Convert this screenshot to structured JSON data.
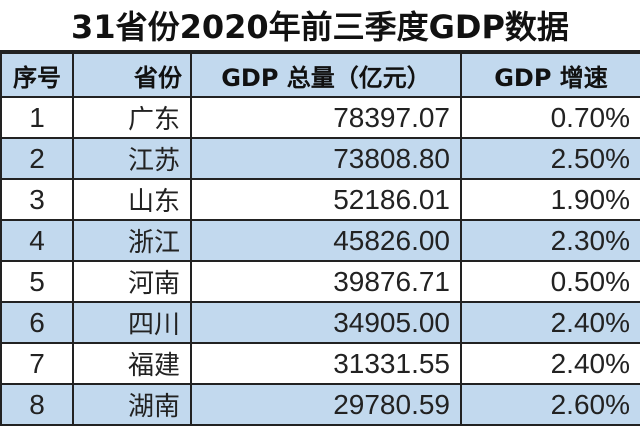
{
  "title": "31省份2020年前三季度GDP数据",
  "headers": {
    "rank": "序号",
    "province": "省份",
    "gdp": "GDP 总量（亿元）",
    "growth": "GDP 增速"
  },
  "rows": [
    {
      "rank": "1",
      "province": "广东",
      "gdp": "78397.07",
      "growth": "0.70%"
    },
    {
      "rank": "2",
      "province": "江苏",
      "gdp": "73808.80",
      "growth": "2.50%"
    },
    {
      "rank": "3",
      "province": "山东",
      "gdp": "52186.01",
      "growth": "1.90%"
    },
    {
      "rank": "4",
      "province": "浙江",
      "gdp": "45826.00",
      "growth": "2.30%"
    },
    {
      "rank": "5",
      "province": "河南",
      "gdp": "39876.71",
      "growth": "0.50%"
    },
    {
      "rank": "6",
      "province": "四川",
      "gdp": "34905.00",
      "growth": "2.40%"
    },
    {
      "rank": "7",
      "province": "福建",
      "gdp": "31331.55",
      "growth": "2.40%"
    },
    {
      "rank": "8",
      "province": "湖南",
      "gdp": "29780.59",
      "growth": "2.60%"
    }
  ],
  "colors": {
    "header_bg": "#c2d9ee",
    "stripe_bg": "#c2d9ee",
    "border": "#222222"
  }
}
